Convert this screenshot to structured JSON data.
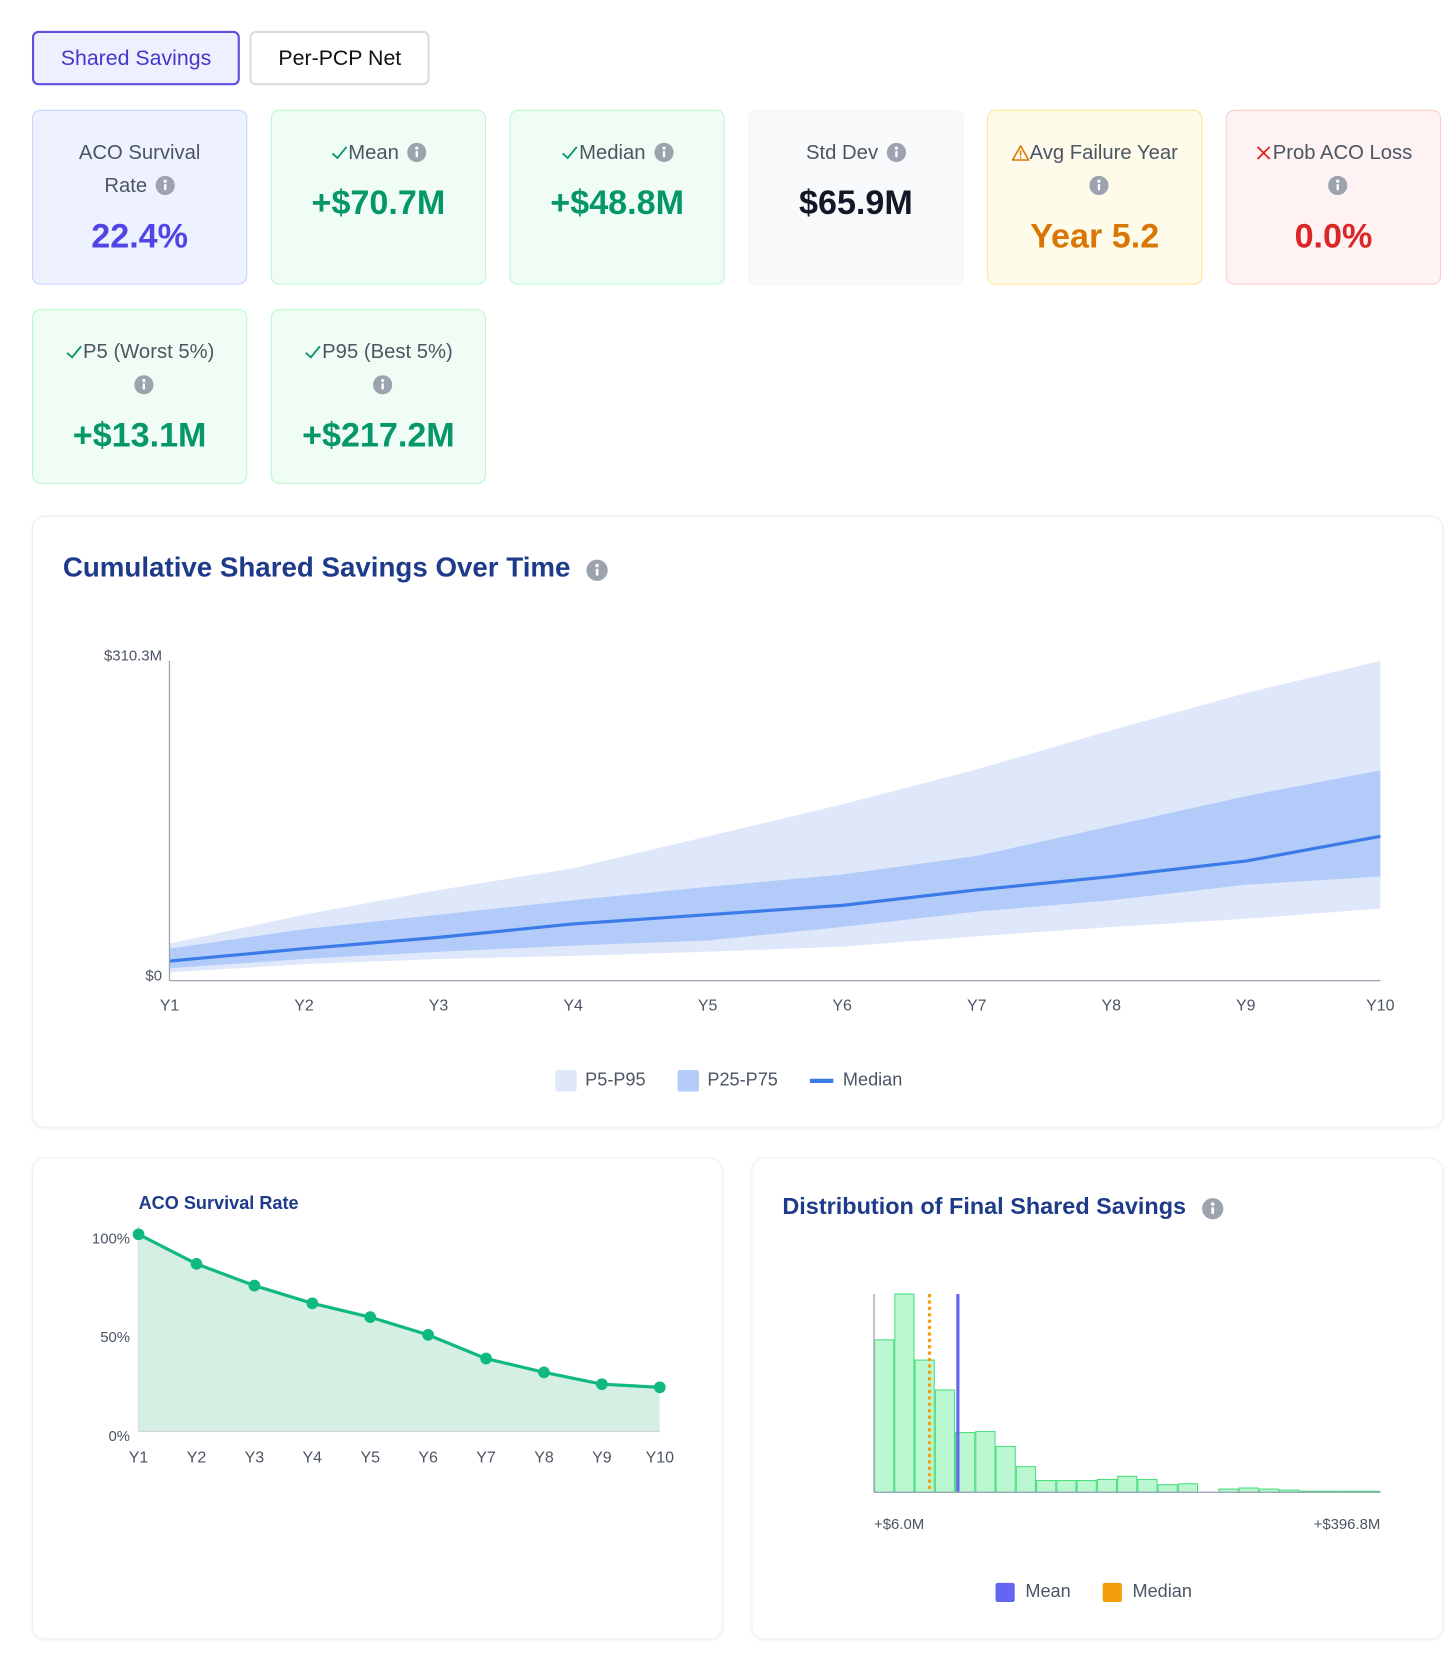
{
  "tabs": [
    {
      "label": "Shared Savings",
      "active": true
    },
    {
      "label": "Per-PCP Net",
      "active": false
    }
  ],
  "cards": [
    {
      "label": "ACO Survival Rate",
      "value": "22.4%",
      "tone": "primary"
    },
    {
      "label": "Mean",
      "value": "+$70.7M",
      "tone": "positive"
    },
    {
      "label": "Median",
      "value": "+$48.8M",
      "tone": "positive"
    },
    {
      "label": "Std Dev",
      "value": "$65.9M",
      "tone": "neutral"
    },
    {
      "label": "Avg Failure Year",
      "value": "Year 5.2",
      "tone": "warning"
    },
    {
      "label": "Prob ACO Loss",
      "value": "0.0%",
      "tone": "danger"
    },
    {
      "label": "P5 (Worst 5%)",
      "value": "+$13.1M",
      "tone": "positive"
    },
    {
      "label": "P95 (Best 5%)",
      "value": "+$217.2M",
      "tone": "positive"
    }
  ],
  "chart_data": [
    {
      "type": "band",
      "title": "Cumulative Shared Savings Over Time",
      "info_icon": true,
      "categories": [
        "Y1",
        "Y2",
        "Y3",
        "Y4",
        "Y5",
        "Y6",
        "Y7",
        "Y8",
        "Y9",
        "Y10"
      ],
      "ylim": [
        0,
        310.3
      ],
      "yticks": [
        {
          "value": 0,
          "label": "$0"
        },
        {
          "value": 310.3,
          "label": "$310.3M"
        }
      ],
      "bands": [
        {
          "name": "P5-P95",
          "color": "#dfe8fb",
          "lower": [
            8,
            16,
            21,
            24,
            28,
            33,
            43,
            52,
            60,
            70
          ],
          "upper": [
            36,
            64,
            88,
            109,
            140,
            171,
            205,
            243,
            279,
            310.3
          ]
        },
        {
          "name": "P25-P75",
          "color": "#b3cbf8",
          "lower": [
            12,
            21,
            28,
            34,
            39,
            52,
            67,
            78,
            93,
            101
          ],
          "upper": [
            31,
            50,
            64,
            78,
            91,
            103,
            121,
            150,
            179,
            204
          ]
        }
      ],
      "series": [
        {
          "name": "Median",
          "color": "#3b7be8",
          "values": [
            19,
            31,
            42,
            55,
            64,
            73,
            88,
            101,
            116,
            140
          ]
        }
      ]
    },
    {
      "type": "area",
      "title": "ACO Survival Rate",
      "info_icon": false,
      "categories": [
        "Y1",
        "Y2",
        "Y3",
        "Y4",
        "Y5",
        "Y6",
        "Y7",
        "Y8",
        "Y9",
        "Y10"
      ],
      "ylim": [
        0,
        100
      ],
      "yticks": [
        {
          "value": 0,
          "label": "0%"
        },
        {
          "value": 50,
          "label": "50%"
        },
        {
          "value": 100,
          "label": "100%"
        }
      ],
      "color": "#10b981",
      "fill": "#d5f0e3",
      "values": [
        100,
        85,
        74,
        65,
        58,
        49,
        37,
        30,
        24,
        22.4
      ]
    },
    {
      "type": "histogram",
      "title": "Distribution of Final Shared Savings",
      "info_icon": true,
      "bins": [
        6.0,
        21.63,
        37.26,
        52.9,
        68.53,
        84.16,
        99.79,
        115.42,
        131.06,
        146.69,
        162.32,
        177.95,
        193.58,
        209.22,
        224.85,
        240.48,
        256.11,
        271.74,
        287.38,
        303.01,
        318.64,
        334.27,
        349.9,
        365.54,
        381.17,
        396.8
      ],
      "counts": [
        143,
        186,
        124,
        96,
        56,
        57,
        43,
        24,
        11,
        11,
        11,
        12,
        15,
        12,
        7,
        8,
        0,
        3,
        4,
        3,
        2,
        1,
        1,
        1,
        1
      ],
      "color": "#bbf7d0",
      "edge_color": "#4ade80",
      "xlim": [
        6.0,
        396.8
      ],
      "xticks": [
        {
          "value": 6.0,
          "label": "+$6.0M"
        },
        {
          "value": 396.8,
          "label": "+$396.8M"
        }
      ],
      "ylim": [
        0,
        186
      ],
      "markers": [
        {
          "name": "Mean",
          "value": 70.7,
          "color": "#6366f1",
          "style": "solid"
        },
        {
          "name": "Median",
          "value": 48.8,
          "color": "#f59e0b",
          "style": "dotted"
        }
      ]
    }
  ]
}
